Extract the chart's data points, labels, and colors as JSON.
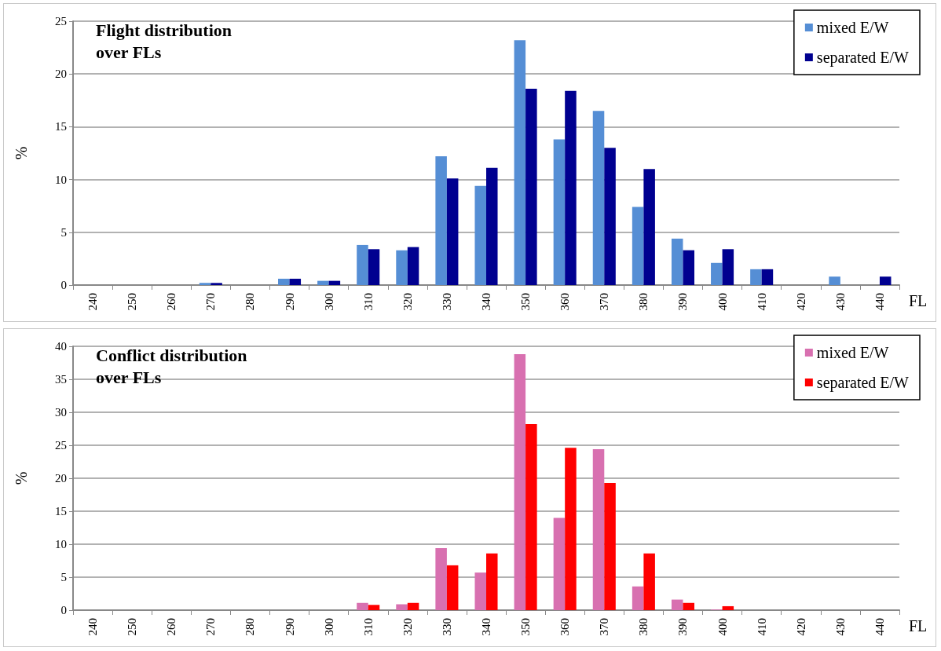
{
  "chart_data": [
    {
      "type": "bar",
      "title": "Flight distribution\nover FLs",
      "xlabel": "FL",
      "ylabel": "%",
      "categories": [
        "240",
        "250",
        "260",
        "270",
        "280",
        "290",
        "300",
        "310",
        "320",
        "330",
        "340",
        "350",
        "360",
        "370",
        "380",
        "390",
        "400",
        "410",
        "420",
        "430",
        "440"
      ],
      "series": [
        {
          "name": "mixed E/W",
          "color": "#558ed5",
          "values": [
            0,
            0,
            0,
            0.2,
            0,
            0.6,
            0.4,
            3.8,
            3.3,
            12.2,
            9.4,
            23.2,
            13.8,
            16.5,
            7.4,
            4.4,
            2.1,
            1.5,
            0,
            0.8,
            0
          ]
        },
        {
          "name": "separated E/W",
          "color": "#000090",
          "values": [
            0,
            0,
            0,
            0.2,
            0,
            0.6,
            0.4,
            3.4,
            3.6,
            10.1,
            11.1,
            18.6,
            18.4,
            13.0,
            11.0,
            3.3,
            3.4,
            1.5,
            0,
            0,
            0.8
          ]
        }
      ],
      "ylim": [
        0,
        25
      ],
      "yticks": [
        0,
        5,
        10,
        15,
        20,
        25
      ],
      "grid": "y",
      "legend": "top right"
    },
    {
      "type": "bar",
      "title": "Conflict distribution\nover FLs",
      "xlabel": "FL",
      "ylabel": "%",
      "categories": [
        "240",
        "250",
        "260",
        "270",
        "280",
        "290",
        "300",
        "310",
        "320",
        "330",
        "340",
        "350",
        "360",
        "370",
        "380",
        "390",
        "400",
        "410",
        "420",
        "430",
        "440"
      ],
      "series": [
        {
          "name": "mixed E/W",
          "color": "#d870b0",
          "values": [
            0,
            0,
            0,
            0,
            0,
            0,
            0,
            1.1,
            0.9,
            9.4,
            5.7,
            38.8,
            14.0,
            24.4,
            3.6,
            1.6,
            0.1,
            0,
            0,
            0,
            0
          ]
        },
        {
          "name": "separated E/W",
          "color": "#ff0000",
          "values": [
            0,
            0,
            0,
            0,
            0,
            0,
            0,
            0.8,
            1.1,
            6.8,
            8.6,
            28.2,
            24.6,
            19.3,
            8.6,
            1.1,
            0.6,
            0,
            0,
            0,
            0
          ]
        }
      ],
      "ylim": [
        0,
        40
      ],
      "yticks": [
        0,
        5,
        10,
        15,
        20,
        25,
        30,
        35,
        40
      ],
      "grid": "y",
      "legend": "top right"
    }
  ]
}
